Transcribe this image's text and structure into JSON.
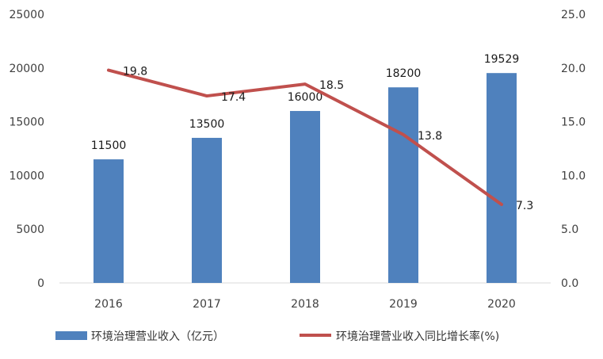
{
  "chart_data": {
    "type": "bar",
    "categories": [
      "2016",
      "2017",
      "2018",
      "2019",
      "2020"
    ],
    "series": [
      {
        "name": "环境治理营业收入（亿元）",
        "type": "bar",
        "axis": "left",
        "values": [
          11500,
          13500,
          16000,
          18200,
          19529
        ],
        "labels": [
          "11500",
          "13500",
          "16000",
          "18200",
          "19529"
        ],
        "color": "#4f81bd"
      },
      {
        "name": "环境治理营业收入同比增长率(%)",
        "type": "line",
        "axis": "right",
        "values": [
          19.8,
          17.4,
          18.5,
          13.8,
          7.3
        ],
        "labels": [
          "19.8",
          "17.4",
          "18.5",
          "13.8",
          "7.3"
        ],
        "color": "#c0504d"
      }
    ],
    "y_left": {
      "range": [
        0,
        25000
      ],
      "ticks": [
        "0",
        "5000",
        "10000",
        "15000",
        "20000",
        "25000"
      ]
    },
    "y_right": {
      "range": [
        0,
        25
      ],
      "ticks": [
        "0.0",
        "5.0",
        "10.0",
        "15.0",
        "20.0",
        "25.0"
      ]
    },
    "grid": false,
    "legend_position": "bottom"
  }
}
